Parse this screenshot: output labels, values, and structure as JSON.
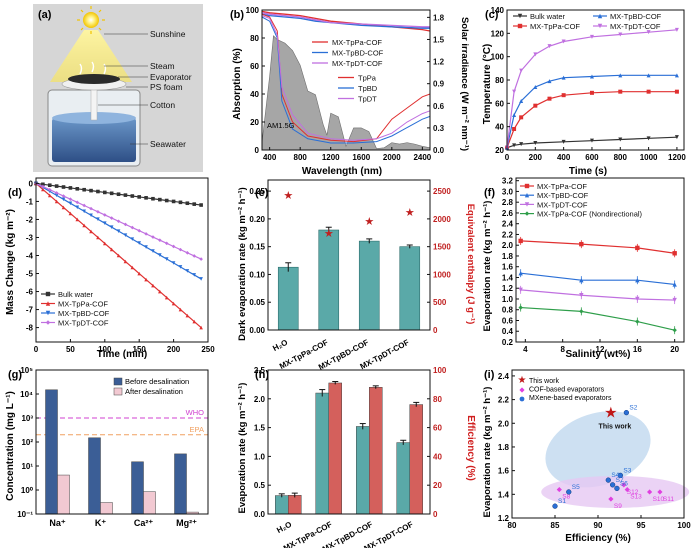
{
  "colors": {
    "red": "#e03030",
    "blue": "#2a6fd6",
    "purple": "#c070e0",
    "green": "#2e9e4a",
    "black": "#333333",
    "pink": "#e040e0",
    "teal_bar": "#5aa9a8",
    "red_bar": "#d4605c",
    "navy_bar": "#3b5e96",
    "pink_bar": "#f2c9d2",
    "who": "#d040d0",
    "epa": "#f0a060"
  },
  "panels": {
    "a": {
      "tag": "(a)",
      "labels": [
        "Sunshine",
        "Steam",
        "Evaporator",
        "PS foam",
        "Cotton",
        "Seawater"
      ]
    },
    "b": {
      "tag": "(b)",
      "xlabel": "Wavelength (nm)",
      "ylabel": "Absorption (%)",
      "y2label": "Solar irradiance (W m⁻² nm⁻¹)",
      "am_label": "AM1.5G"
    },
    "c": {
      "tag": "(c)",
      "xlabel": "Time (s)",
      "ylabel": "Temperature (°C)"
    },
    "d": {
      "tag": "(d)",
      "xlabel": "Time (min)",
      "ylabel": "Mass Change (kg m⁻²)"
    },
    "e": {
      "tag": "(e)",
      "ylabel": "Dark evaporation rate (kg m⁻² h⁻¹)",
      "y2label": "Equivalent enthalpy (J g⁻¹)"
    },
    "f": {
      "tag": "(f)",
      "xlabel": "Salinity (wt%)",
      "ylabel": "Evaporation rate (kg m⁻² h⁻¹)"
    },
    "g": {
      "tag": "(g)",
      "ylabel": "Concentration (mg L⁻¹)",
      "who": "WHO",
      "epa": "EPA",
      "legend": [
        "Before desalination",
        "After desalination"
      ]
    },
    "h": {
      "tag": "(h)",
      "ylabel": "Evaporation rate (kg m⁻² h⁻¹)",
      "y2label": "Efficiency (%)"
    },
    "i": {
      "tag": "(i)",
      "xlabel": "Efficiency (%)",
      "ylabel": "Evaporation rate (kg m⁻² h⁻¹)",
      "this_work_label": "This work",
      "legend": [
        "This work",
        "COF-based evaporators",
        "MXene-based evaporators"
      ]
    }
  },
  "chart_data": [
    {
      "panel": "b",
      "type": "line",
      "x_ticks": [
        "400",
        "800",
        "1200",
        "1600",
        "2000",
        "2400"
      ],
      "y_ticks": [
        "0",
        "20",
        "40",
        "60",
        "80",
        "100"
      ],
      "y2_ticks": [
        "0.0",
        "0.3",
        "0.6",
        "0.9",
        "1.2",
        "1.5",
        "1.8"
      ],
      "xlim": [
        300,
        2500
      ],
      "ylim": [
        0,
        100
      ],
      "y2lim": [
        0,
        1.9
      ],
      "absorption": [
        {
          "name": "MX-TpPa-COF",
          "color": "#e03030",
          "x": [
            300,
            400,
            600,
            800,
            1000,
            1200,
            1600,
            2000,
            2400,
            2500
          ],
          "y": [
            99,
            98,
            97,
            96,
            94,
            92,
            90,
            88,
            86,
            85
          ]
        },
        {
          "name": "MX-TpBD-COF",
          "color": "#2a6fd6",
          "x": [
            300,
            400,
            600,
            800,
            1000,
            1200,
            1600,
            2000,
            2400,
            2500
          ],
          "y": [
            97,
            96,
            95,
            94,
            92,
            91,
            89,
            88,
            87,
            87
          ]
        },
        {
          "name": "MX-TpDT-COF",
          "color": "#c070e0",
          "x": [
            300,
            400,
            600,
            800,
            1000,
            1200,
            1600,
            2000,
            2400,
            2500
          ],
          "y": [
            98,
            97,
            96,
            95,
            93,
            91,
            90,
            89,
            88,
            88
          ]
        },
        {
          "name": "TpPa",
          "color": "#e03030",
          "x": [
            300,
            400,
            500,
            560,
            700,
            900,
            1200,
            1500,
            1800,
            2000,
            2200,
            2400,
            2500
          ],
          "y": [
            97,
            95,
            85,
            40,
            20,
            10,
            7,
            6,
            8,
            22,
            30,
            38,
            40
          ]
        },
        {
          "name": "TpBD",
          "color": "#2a6fd6",
          "x": [
            300,
            400,
            500,
            560,
            700,
            900,
            1200,
            1500,
            1800,
            2000,
            2200,
            2400,
            2500
          ],
          "y": [
            95,
            92,
            80,
            35,
            15,
            8,
            5,
            5,
            6,
            10,
            16,
            22,
            24
          ]
        },
        {
          "name": "TpDT",
          "color": "#c070e0",
          "x": [
            300,
            400,
            500,
            560,
            700,
            900,
            1200,
            1500,
            1800,
            2000,
            2200,
            2400,
            2500
          ],
          "y": [
            96,
            94,
            82,
            45,
            25,
            12,
            8,
            7,
            8,
            12,
            20,
            26,
            28
          ]
        }
      ],
      "irradiance": {
        "x": [
          300,
          400,
          450,
          500,
          600,
          700,
          800,
          900,
          1000,
          1100,
          1150,
          1200,
          1300,
          1400,
          1500,
          1600,
          1700,
          1800,
          1900,
          2000,
          2100,
          2200,
          2300,
          2400,
          2500
        ],
        "y": [
          0.1,
          1.0,
          1.55,
          1.5,
          1.45,
          1.35,
          1.15,
          0.8,
          0.75,
          0.35,
          0.2,
          0.5,
          0.45,
          0.05,
          0.3,
          0.3,
          0.25,
          0.02,
          0.03,
          0.1,
          0.08,
          0.1,
          0.08,
          0.05,
          0.03
        ]
      }
    },
    {
      "panel": "c",
      "type": "line",
      "x_ticks": [
        "0",
        "200",
        "400",
        "600",
        "800",
        "1000",
        "1200"
      ],
      "y_ticks": [
        "20",
        "40",
        "60",
        "80",
        "100",
        "120",
        "140"
      ],
      "xlim": [
        0,
        1250
      ],
      "ylim": [
        20,
        140
      ],
      "series": [
        {
          "name": "Bulk water",
          "color": "#333333",
          "x": [
            0,
            50,
            100,
            200,
            400,
            600,
            800,
            1000,
            1200
          ],
          "y": [
            22,
            24,
            25,
            26,
            27,
            28,
            29,
            30,
            31
          ]
        },
        {
          "name": "MX-TpPa-COF",
          "color": "#e03030",
          "x": [
            0,
            50,
            100,
            200,
            300,
            400,
            600,
            800,
            1000,
            1200
          ],
          "y": [
            22,
            38,
            48,
            58,
            64,
            67,
            69,
            70,
            70,
            70
          ]
        },
        {
          "name": "MX-TpBD-COF",
          "color": "#2a6fd6",
          "x": [
            0,
            50,
            100,
            200,
            300,
            400,
            600,
            800,
            1000,
            1200
          ],
          "y": [
            22,
            50,
            62,
            74,
            79,
            82,
            83,
            84,
            84,
            84
          ]
        },
        {
          "name": "MX-TpDT-COF",
          "color": "#c070e0",
          "x": [
            0,
            50,
            100,
            200,
            300,
            400,
            600,
            800,
            1000,
            1200
          ],
          "y": [
            22,
            70,
            88,
            102,
            109,
            113,
            117,
            119,
            121,
            123
          ]
        }
      ]
    },
    {
      "panel": "d",
      "type": "line",
      "x_ticks": [
        "0",
        "50",
        "100",
        "150",
        "200",
        "250"
      ],
      "y_ticks": [
        "0",
        "-1",
        "-2",
        "-3",
        "-4",
        "-5",
        "-6",
        "-7",
        "-8"
      ],
      "xlim": [
        0,
        250
      ],
      "ylim": [
        -8.8,
        0.3
      ],
      "series": [
        {
          "name": "Bulk water",
          "color": "#333333",
          "x": [
            0,
            240
          ],
          "y": [
            0,
            -1.2
          ]
        },
        {
          "name": "MX-TpPa-COF",
          "color": "#e03030",
          "x": [
            0,
            240
          ],
          "y": [
            0,
            -8.0
          ]
        },
        {
          "name": "MX-TpBD-COF",
          "color": "#2a6fd6",
          "x": [
            0,
            240
          ],
          "y": [
            0,
            -5.3
          ]
        },
        {
          "name": "MX-TpDT-COF",
          "color": "#c070e0",
          "x": [
            0,
            240
          ],
          "y": [
            0,
            -4.2
          ]
        }
      ]
    },
    {
      "panel": "e",
      "type": "bar",
      "categories": [
        "H₂O",
        "MX-TpPa-COF",
        "MX-TpBD-COF",
        "MX-TpDT-COF"
      ],
      "values": [
        0.113,
        0.18,
        0.16,
        0.15
      ],
      "errors": [
        0.008,
        0.005,
        0.004,
        0.003
      ],
      "enthalpy": [
        2430,
        1750,
        1960,
        2120
      ],
      "y_ticks": [
        "0.00",
        "0.05",
        "0.10",
        "0.15",
        "0.20",
        "0.25"
      ],
      "y2_ticks": [
        "0",
        "500",
        "1000",
        "1500",
        "2000",
        "2500"
      ],
      "ylim": [
        0,
        0.27
      ],
      "y2lim": [
        0,
        2700
      ]
    },
    {
      "panel": "f",
      "type": "line",
      "x_ticks": [
        "4",
        "8",
        "12",
        "16",
        "20"
      ],
      "y_ticks": [
        "0.2",
        "0.4",
        "0.6",
        "0.8",
        "1.0",
        "1.2",
        "1.4",
        "1.6",
        "1.8",
        "2.0",
        "2.2",
        "2.4",
        "2.6",
        "2.8",
        "3.0",
        "3.2"
      ],
      "xlim": [
        3,
        21
      ],
      "ylim": [
        0.2,
        3.25
      ],
      "series": [
        {
          "name": "MX-TpPa-COF",
          "color": "#e03030",
          "x": [
            3.5,
            10,
            16,
            20
          ],
          "y": [
            2.08,
            2.02,
            1.95,
            1.85
          ]
        },
        {
          "name": "MX-TpBD-COF",
          "color": "#2a6fd6",
          "x": [
            3.5,
            10,
            16,
            20
          ],
          "y": [
            1.48,
            1.35,
            1.35,
            1.27
          ]
        },
        {
          "name": "MX-TpDT-COF",
          "color": "#c070e0",
          "x": [
            3.5,
            10,
            16,
            20
          ],
          "y": [
            1.17,
            1.07,
            1.0,
            0.98
          ]
        },
        {
          "name": "MX-TpPa-COF (Nondirectional)",
          "color": "#2e9e4a",
          "x": [
            3.5,
            10,
            16,
            20
          ],
          "y": [
            0.84,
            0.77,
            0.58,
            0.42
          ]
        }
      ]
    },
    {
      "panel": "g",
      "type": "bar",
      "categories": [
        "Na⁺",
        "K⁺",
        "Ca²⁺",
        "Mg²⁺"
      ],
      "series": [
        {
          "name": "Before desalination",
          "color": "#3b5e96",
          "values": [
            15000,
            150,
            15,
            32
          ]
        },
        {
          "name": "After desalination",
          "color": "#f2c9d2",
          "values": [
            4.2,
            0.3,
            0.85,
            0.12
          ]
        }
      ],
      "scale": "log",
      "y_ticks": [
        "10⁻¹",
        "10⁰",
        "10¹",
        "10²",
        "10³",
        "10⁴",
        "10⁵"
      ],
      "ylim": [
        0.1,
        100000
      ],
      "who_level": 1000,
      "epa_level": 200
    },
    {
      "panel": "h",
      "type": "bar",
      "categories": [
        "H₂O",
        "MX-TpPa-COF",
        "MX-TpBD-COF",
        "MX-TpDT-COF"
      ],
      "series": [
        {
          "name": "Evaporation rate",
          "color": "#5aa9a8",
          "values": [
            0.32,
            2.1,
            1.52,
            1.24
          ],
          "errors": [
            0.03,
            0.06,
            0.05,
            0.04
          ]
        },
        {
          "name": "Efficiency",
          "color": "#d4605c",
          "values": [
            13,
            91,
            88,
            76
          ],
          "errors": [
            1.5,
            1,
            1,
            1.5
          ]
        }
      ],
      "y_ticks": [
        "0.0",
        "0.5",
        "1.0",
        "1.5",
        "2.0",
        "2.5"
      ],
      "y2_ticks": [
        "0",
        "20",
        "40",
        "60",
        "80",
        "100"
      ],
      "ylim": [
        0,
        2.5
      ],
      "y2lim": [
        0,
        100
      ]
    },
    {
      "panel": "i",
      "type": "scatter",
      "x_ticks": [
        "80",
        "85",
        "90",
        "95",
        "100"
      ],
      "y_ticks": [
        "1.2",
        "1.4",
        "1.6",
        "1.8",
        "2.0",
        "2.2",
        "2.4"
      ],
      "xlim": [
        80,
        100
      ],
      "ylim": [
        1.2,
        2.45
      ],
      "this_work": {
        "x": 91.5,
        "y": 2.09
      },
      "cof": [
        {
          "label": "S8",
          "x": 85.5,
          "y": 1.44
        },
        {
          "label": "S9",
          "x": 91.5,
          "y": 1.36
        },
        {
          "label": "S10",
          "x": 96,
          "y": 1.42
        },
        {
          "label": "S11",
          "x": 97.2,
          "y": 1.42
        },
        {
          "label": "S12",
          "x": 93,
          "y": 1.48
        },
        {
          "label": "S13",
          "x": 93.4,
          "y": 1.44
        }
      ],
      "mxene": [
        {
          "label": "S1",
          "x": 85,
          "y": 1.3
        },
        {
          "label": "S2",
          "x": 93.3,
          "y": 2.09
        },
        {
          "label": "S3",
          "x": 92.6,
          "y": 1.56
        },
        {
          "label": "S4",
          "x": 91.2,
          "y": 1.52
        },
        {
          "label": "S5",
          "x": 86.6,
          "y": 1.42
        },
        {
          "label": "S6",
          "x": 92.2,
          "y": 1.45
        },
        {
          "label": "S7",
          "x": 91.7,
          "y": 1.48
        }
      ]
    }
  ]
}
